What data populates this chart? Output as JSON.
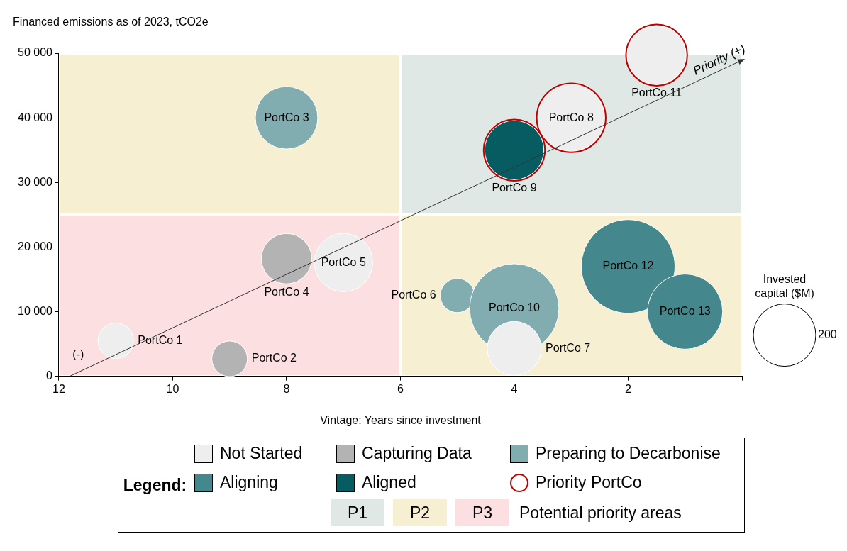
{
  "chart_data": {
    "type": "bubble",
    "ylabel": "Financed emissions as of 2023, tCO2e",
    "xlabel": "Vintage: Years since investment",
    "legend_title": "Legend:",
    "legend": "bottom",
    "grid": false,
    "xlim": [
      12,
      0
    ],
    "xticks": [
      12,
      10,
      8,
      6,
      4,
      2,
      {
        "value": 0,
        "label": null
      }
    ],
    "ylim": [
      0,
      50000
    ],
    "yticks": [
      {
        "value": 0,
        "label": "0"
      },
      {
        "value": 10000,
        "label": "10 000"
      },
      {
        "value": 20000,
        "label": "20 000"
      },
      {
        "value": 30000,
        "label": "30 000"
      },
      {
        "value": 40000,
        "label": "40 000"
      },
      {
        "value": 50000,
        "label": "50 000"
      }
    ],
    "size_legend": [
      200
    ],
    "series": [
      {
        "name": "Not Started",
        "color": "#eeeeee",
        "x": [
          11,
          7,
          4,
          3,
          1.5
        ],
        "values": [
          5500,
          17600,
          4300,
          40000,
          49700
        ],
        "sizes": [
          65,
          175,
          150,
          230,
          180
        ]
      },
      {
        "name": "Capturing Data",
        "color": "#b3b3b3",
        "x": [
          9,
          8
        ],
        "values": [
          2700,
          18200
        ],
        "sizes": [
          65,
          130
        ]
      },
      {
        "name": "Preparing to Decarbonise",
        "color": "#82adb0",
        "x": [
          8,
          5,
          4
        ],
        "values": [
          40000,
          12500,
          10500
        ],
        "sizes": [
          200,
          60,
          410
        ]
      },
      {
        "name": "Aligning",
        "color": "#44878c",
        "x": [
          2,
          1
        ],
        "values": [
          17000,
          10000
        ],
        "sizes": [
          450,
          290
        ]
      },
      {
        "name": "Aligned",
        "color": "#065c60",
        "x": [
          4
        ],
        "values": [
          35000
        ],
        "sizes": [
          180
        ]
      },
      {
        "name": "Priority PortCo",
        "color": "#c00000",
        "marker": "circle",
        "x": [
          3,
          4,
          1.5
        ],
        "values": [
          40000,
          35000,
          49700
        ],
        "sizes": [
          230,
          180,
          180
        ]
      }
    ],
    "annotations": [
      "(-)",
      "Priority (+)",
      "Invested capital ($M)",
      "P1",
      "P2",
      "P3",
      "Potential priority areas",
      {
        "text": "PortCo 1",
        "x": 11,
        "y": 5500
      },
      {
        "text": "PortCo 2",
        "x": 9,
        "y": 2700
      },
      {
        "text": "PortCo 3",
        "x": 8,
        "y": 40000
      },
      {
        "text": "PortCo 4",
        "x": 8,
        "y": 18200
      },
      {
        "text": "PortCo 5",
        "x": 7,
        "y": 17600
      },
      {
        "text": "PortCo 6",
        "x": 5,
        "y": 12500
      },
      {
        "text": "PortCo 7",
        "x": 4,
        "y": 4300
      },
      {
        "text": "PortCo 8",
        "x": 3,
        "y": 40000
      },
      {
        "text": "PortCo 9",
        "x": 4,
        "y": 35000
      },
      {
        "text": "PortCo 10",
        "x": 4,
        "y": 10500
      },
      {
        "text": "PortCo 11",
        "x": 1.5,
        "y": 49700
      },
      {
        "text": "PortCo 12",
        "x": 2,
        "y": 17000
      },
      {
        "text": "PortCo 13",
        "x": 1,
        "y": 10000
      }
    ]
  }
}
